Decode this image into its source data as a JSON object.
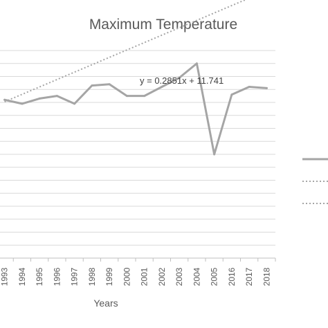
{
  "chart_data": {
    "type": "line",
    "title": "Maximum Temperature",
    "xlabel": "Years",
    "ylabel": "",
    "categories": [
      "1993",
      "1994",
      "1995",
      "1996",
      "1997",
      "1998",
      "1999",
      "2000",
      "2001",
      "2002",
      "2003",
      "2004",
      "2005",
      "2016",
      "2017",
      "2018"
    ],
    "visible_x_ticks": [
      "1993",
      "1994",
      "1995",
      "1996",
      "1997",
      "1998",
      "1999",
      "2000",
      "2001",
      "2002",
      "2003",
      "2004",
      "2005",
      "2016",
      "2017",
      "2018"
    ],
    "series": [
      {
        "values": [
          12.1,
          11.95,
          12.15,
          12.25,
          11.95,
          12.65,
          12.7,
          12.25,
          12.25,
          12.6,
          12.95,
          13.5,
          10.0,
          12.3,
          12.6,
          12.55
        ],
        "color": "#a5a5a5",
        "style": "solid"
      }
    ],
    "trendline": {
      "equation": "y = 0.2851x + 11.741",
      "slope": 0.2851,
      "intercept": 11.741,
      "color": "#a5a5a5",
      "style": "dotted"
    },
    "ylim": [
      6,
      14
    ],
    "grid": true,
    "legend_position": "right",
    "legend_entries": [
      {
        "style": "solid",
        "color": "#a5a5a5"
      },
      {
        "style": "dotted",
        "color": "#a5a5a5"
      },
      {
        "style": "dotted",
        "color": "#a5a5a5"
      }
    ]
  }
}
